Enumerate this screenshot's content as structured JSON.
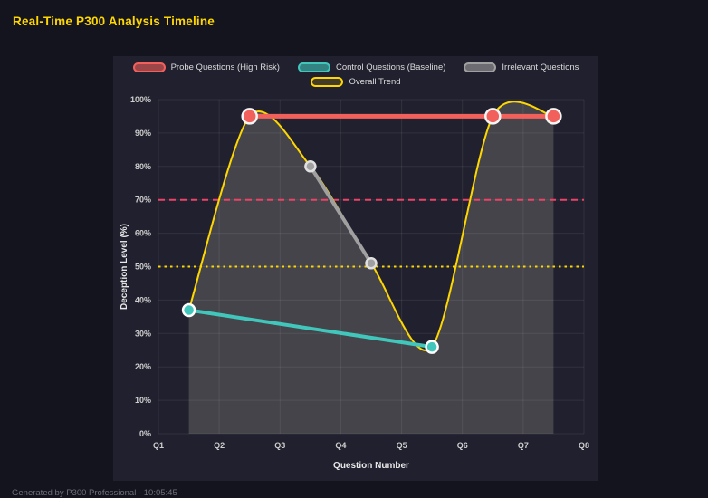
{
  "title": "Real-Time P300 Analysis Timeline",
  "footer": "Generated by P300 Professional - 10:05:45",
  "colors": {
    "background": "#14141f",
    "panel": "#20202e",
    "title": "#ffd700",
    "probe_red": "#f2605c",
    "control_teal": "#41c6bc",
    "irrelevant_gray": "#a8a8a8",
    "trend_yellow": "#ffd700",
    "threshold_red": "#ee4266"
  },
  "chart_data": {
    "type": "line",
    "title": "Real-Time P300 Analysis Timeline",
    "xlabel": "Question Number",
    "ylabel": "Deception Level (%)",
    "x_ticks": [
      "Q1",
      "Q2",
      "Q3",
      "Q4",
      "Q5",
      "Q6",
      "Q7",
      "Q8"
    ],
    "xlim": [
      1,
      8
    ],
    "ylim": [
      0,
      100
    ],
    "y_tick_step": 10,
    "y_tick_suffix": "%",
    "grid": true,
    "legend_position": "top",
    "series": [
      {
        "name": "Probe Questions (High Risk)",
        "color": "#f2605c",
        "marker_border": "#f5f5f5",
        "marker_radius": 8,
        "line_width": 5,
        "points": [
          {
            "x": 2.5,
            "y": 95
          },
          {
            "x": 6.5,
            "y": 95
          },
          {
            "x": 7.5,
            "y": 95
          }
        ]
      },
      {
        "name": "Control Questions (Baseline)",
        "color": "#41c6bc",
        "marker_border": "#ffffff",
        "marker_radius": 6.5,
        "line_width": 4,
        "points": [
          {
            "x": 1.5,
            "y": 37
          },
          {
            "x": 5.5,
            "y": 26
          }
        ]
      },
      {
        "name": "Irrelevant Questions",
        "color": "#a0a0a0",
        "marker_border": "#e0e0e0",
        "marker_radius": 5.5,
        "line_width": 4,
        "points": [
          {
            "x": 3.5,
            "y": 80
          },
          {
            "x": 4.5,
            "y": 51
          }
        ]
      }
    ],
    "trend": {
      "name": "Overall Trend",
      "color": "#ffd700",
      "fill": "rgba(235,235,205,0.18)",
      "points": [
        {
          "x": 1.5,
          "y": 37
        },
        {
          "x": 2.5,
          "y": 95
        },
        {
          "x": 3.5,
          "y": 80
        },
        {
          "x": 4.5,
          "y": 51
        },
        {
          "x": 5.5,
          "y": 26
        },
        {
          "x": 6.5,
          "y": 95
        },
        {
          "x": 7.5,
          "y": 95
        }
      ]
    },
    "thresholds": [
      {
        "y": 70,
        "color": "#ee4266",
        "style": "dashed"
      },
      {
        "y": 50,
        "color": "#ffd700",
        "style": "dotted"
      }
    ]
  }
}
